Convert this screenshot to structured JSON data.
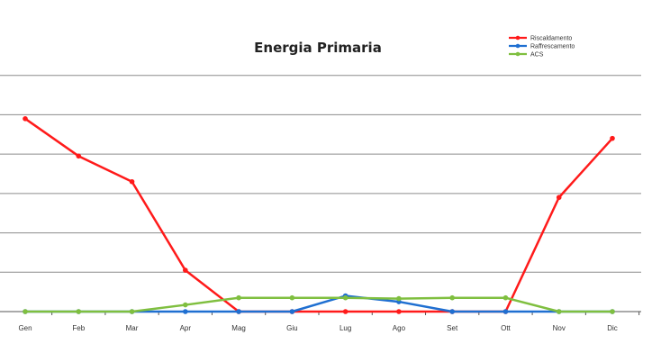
{
  "chart_data": {
    "type": "line",
    "title": "Energia Primaria",
    "xlabel": "",
    "ylabel": "",
    "categories": [
      "Gen",
      "Feb",
      "Mar",
      "Apr",
      "Mag",
      "Giu",
      "Lug",
      "Ago",
      "Set",
      "Ott",
      "Nov",
      "Dic"
    ],
    "ylim": [
      0,
      7
    ],
    "yticks": [
      0,
      1,
      2,
      3,
      4,
      5,
      6,
      7
    ],
    "grid": true,
    "legend_position": "top-right",
    "series": [
      {
        "name": "Riscaldamento",
        "color": "#ff1a1a",
        "values": [
          4.9,
          3.95,
          3.3,
          1.05,
          0,
          0,
          0,
          0,
          0,
          0,
          2.9,
          4.4
        ]
      },
      {
        "name": "Raffrescamento",
        "color": "#1f6fd1",
        "values": [
          0,
          0,
          0,
          0,
          0,
          0,
          0.4,
          0.25,
          0,
          0,
          0,
          0
        ]
      },
      {
        "name": "ACS",
        "color": "#7fbf3f",
        "values": [
          0,
          0,
          0,
          0.17,
          0.35,
          0.35,
          0.35,
          0.33,
          0.35,
          0.35,
          0,
          0
        ]
      }
    ]
  }
}
